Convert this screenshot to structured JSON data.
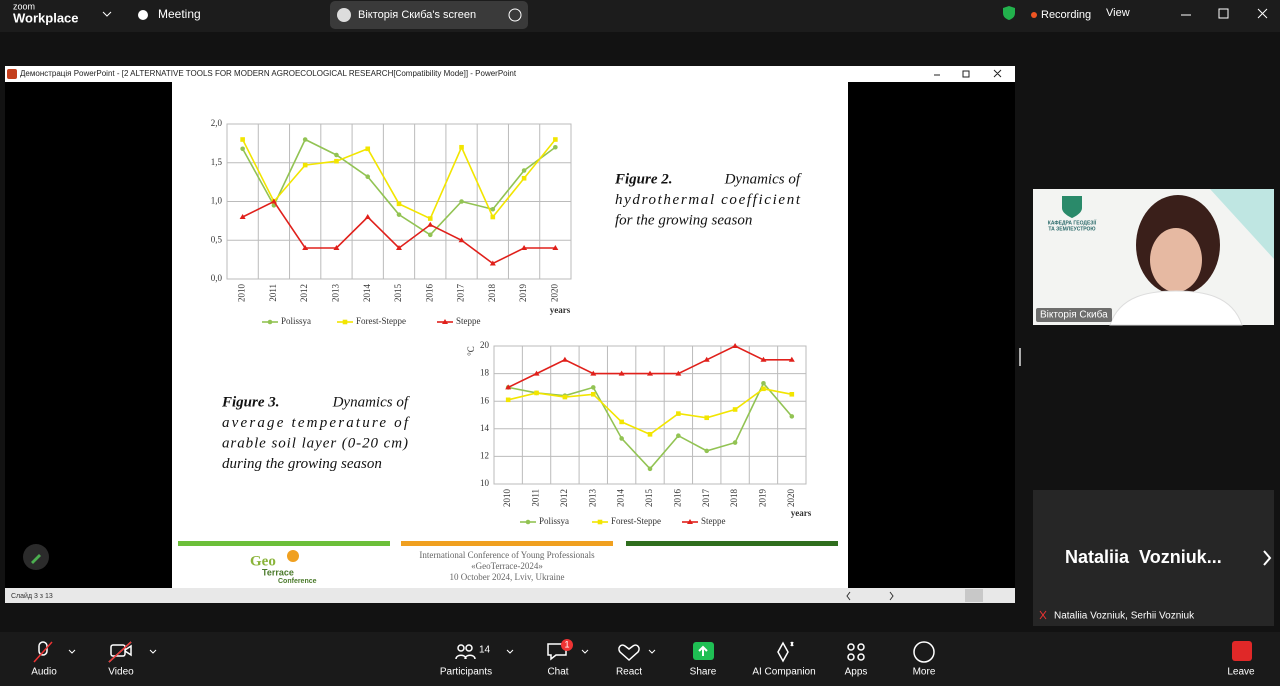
{
  "app": {
    "brand_top": "zoom",
    "brand": "Workplace",
    "meeting": "Meeting",
    "screen_share": "Вікторія Скиба's screen",
    "recording": "Recording",
    "view": "View"
  },
  "window": {
    "title": "Демонстрація PowerPoint - [2 ALTERNATIVE TOOLS FOR MODERN AGROECOLOGICAL RESEARCH[Compatibility Mode]] - PowerPoint",
    "slide_status": "Слайд 3 з 13"
  },
  "slide": {
    "footer_lines": [
      "International Conference of Young Professionals",
      "«GeoTerrace-2024»",
      "10 October 2024, Lviv, Ukraine"
    ],
    "logo": [
      "Geo",
      "Terrace",
      "Conference"
    ]
  },
  "chart_data": [
    {
      "type": "line",
      "caption_label": "Figure 2.",
      "caption_lines": [
        "Dynamics of",
        "hydrothermal coefficient",
        "for the growing season"
      ],
      "x_label": "years",
      "grid": true,
      "categories": [
        "2010",
        "2011",
        "2012",
        "2013",
        "2014",
        "2015",
        "2016",
        "2017",
        "2018",
        "2019",
        "2020"
      ],
      "ylim": [
        0,
        2
      ],
      "yticks": [
        {
          "value": 0,
          "label": "0,0"
        },
        {
          "value": 0.5,
          "label": "0,5"
        },
        {
          "value": 1,
          "label": "1,0"
        },
        {
          "value": 1.5,
          "label": "1,5"
        },
        {
          "value": 2,
          "label": "2,0"
        }
      ],
      "series": [
        {
          "name": "Polissya",
          "color": "#92c353",
          "marker": "circle",
          "values": [
            1.68,
            0.95,
            1.8,
            1.6,
            1.32,
            0.83,
            0.57,
            1.0,
            0.9,
            1.4,
            1.7
          ]
        },
        {
          "name": "Forest-Steppe",
          "color": "#f2e500",
          "marker": "square",
          "values": [
            1.8,
            1.0,
            1.47,
            1.52,
            1.68,
            0.97,
            0.78,
            1.7,
            0.8,
            1.3,
            1.8
          ]
        },
        {
          "name": "Steppe",
          "color": "#e0201b",
          "marker": "triangle",
          "values": [
            0.8,
            1.0,
            0.4,
            0.4,
            0.8,
            0.4,
            0.7,
            0.5,
            0.2,
            0.4,
            0.4
          ]
        }
      ]
    },
    {
      "type": "line",
      "caption_label": "Figure 3.",
      "caption_lines": [
        "Dynamics of",
        "average temperature of",
        "arable soil layer (0-20 cm)",
        "during the growing season"
      ],
      "x_label": "years",
      "y_label": "°C",
      "grid": true,
      "categories": [
        "2010",
        "2011",
        "2012",
        "2013",
        "2014",
        "2015",
        "2016",
        "2017",
        "2018",
        "2019",
        "2020"
      ],
      "ylim": [
        10,
        20
      ],
      "yticks": [
        10,
        12,
        14,
        16,
        18,
        20
      ],
      "series": [
        {
          "name": "Polissya",
          "color": "#92c353",
          "marker": "circle",
          "values": [
            17.0,
            16.6,
            16.4,
            17.0,
            13.3,
            11.1,
            13.5,
            12.4,
            13.0,
            17.3,
            14.9
          ]
        },
        {
          "name": "Forest-Steppe",
          "color": "#f2e500",
          "marker": "square",
          "values": [
            16.1,
            16.6,
            16.3,
            16.5,
            14.5,
            13.6,
            15.1,
            14.8,
            15.4,
            16.9,
            16.5
          ]
        },
        {
          "name": "Steppe",
          "color": "#e0201b",
          "marker": "triangle",
          "values": [
            17.0,
            18.0,
            19.0,
            18.0,
            18.0,
            18.0,
            18.0,
            19.0,
            20.0,
            19.0,
            19.0
          ]
        }
      ]
    }
  ],
  "participants": {
    "tile1_logo": [
      "КАФЕДРА ГЕОДЕЗІЇ",
      "ТА ЗЕМЛЕУСТРОЮ"
    ],
    "tile1_name": "Вікторія Скиба",
    "tile2_name": "Nataliia  Vozniuk...",
    "tile2_caption": "Nataliia Vozniuk, Serhii Vozniuk"
  },
  "toolbar": {
    "audio": "Audio",
    "video": "Video",
    "participants": "Participants",
    "participants_count": 14,
    "chat": "Chat",
    "chat_badge": 1,
    "react": "React",
    "share": "Share",
    "ai": "AI Companion",
    "apps": "Apps",
    "more": "More",
    "leave": "Leave"
  }
}
